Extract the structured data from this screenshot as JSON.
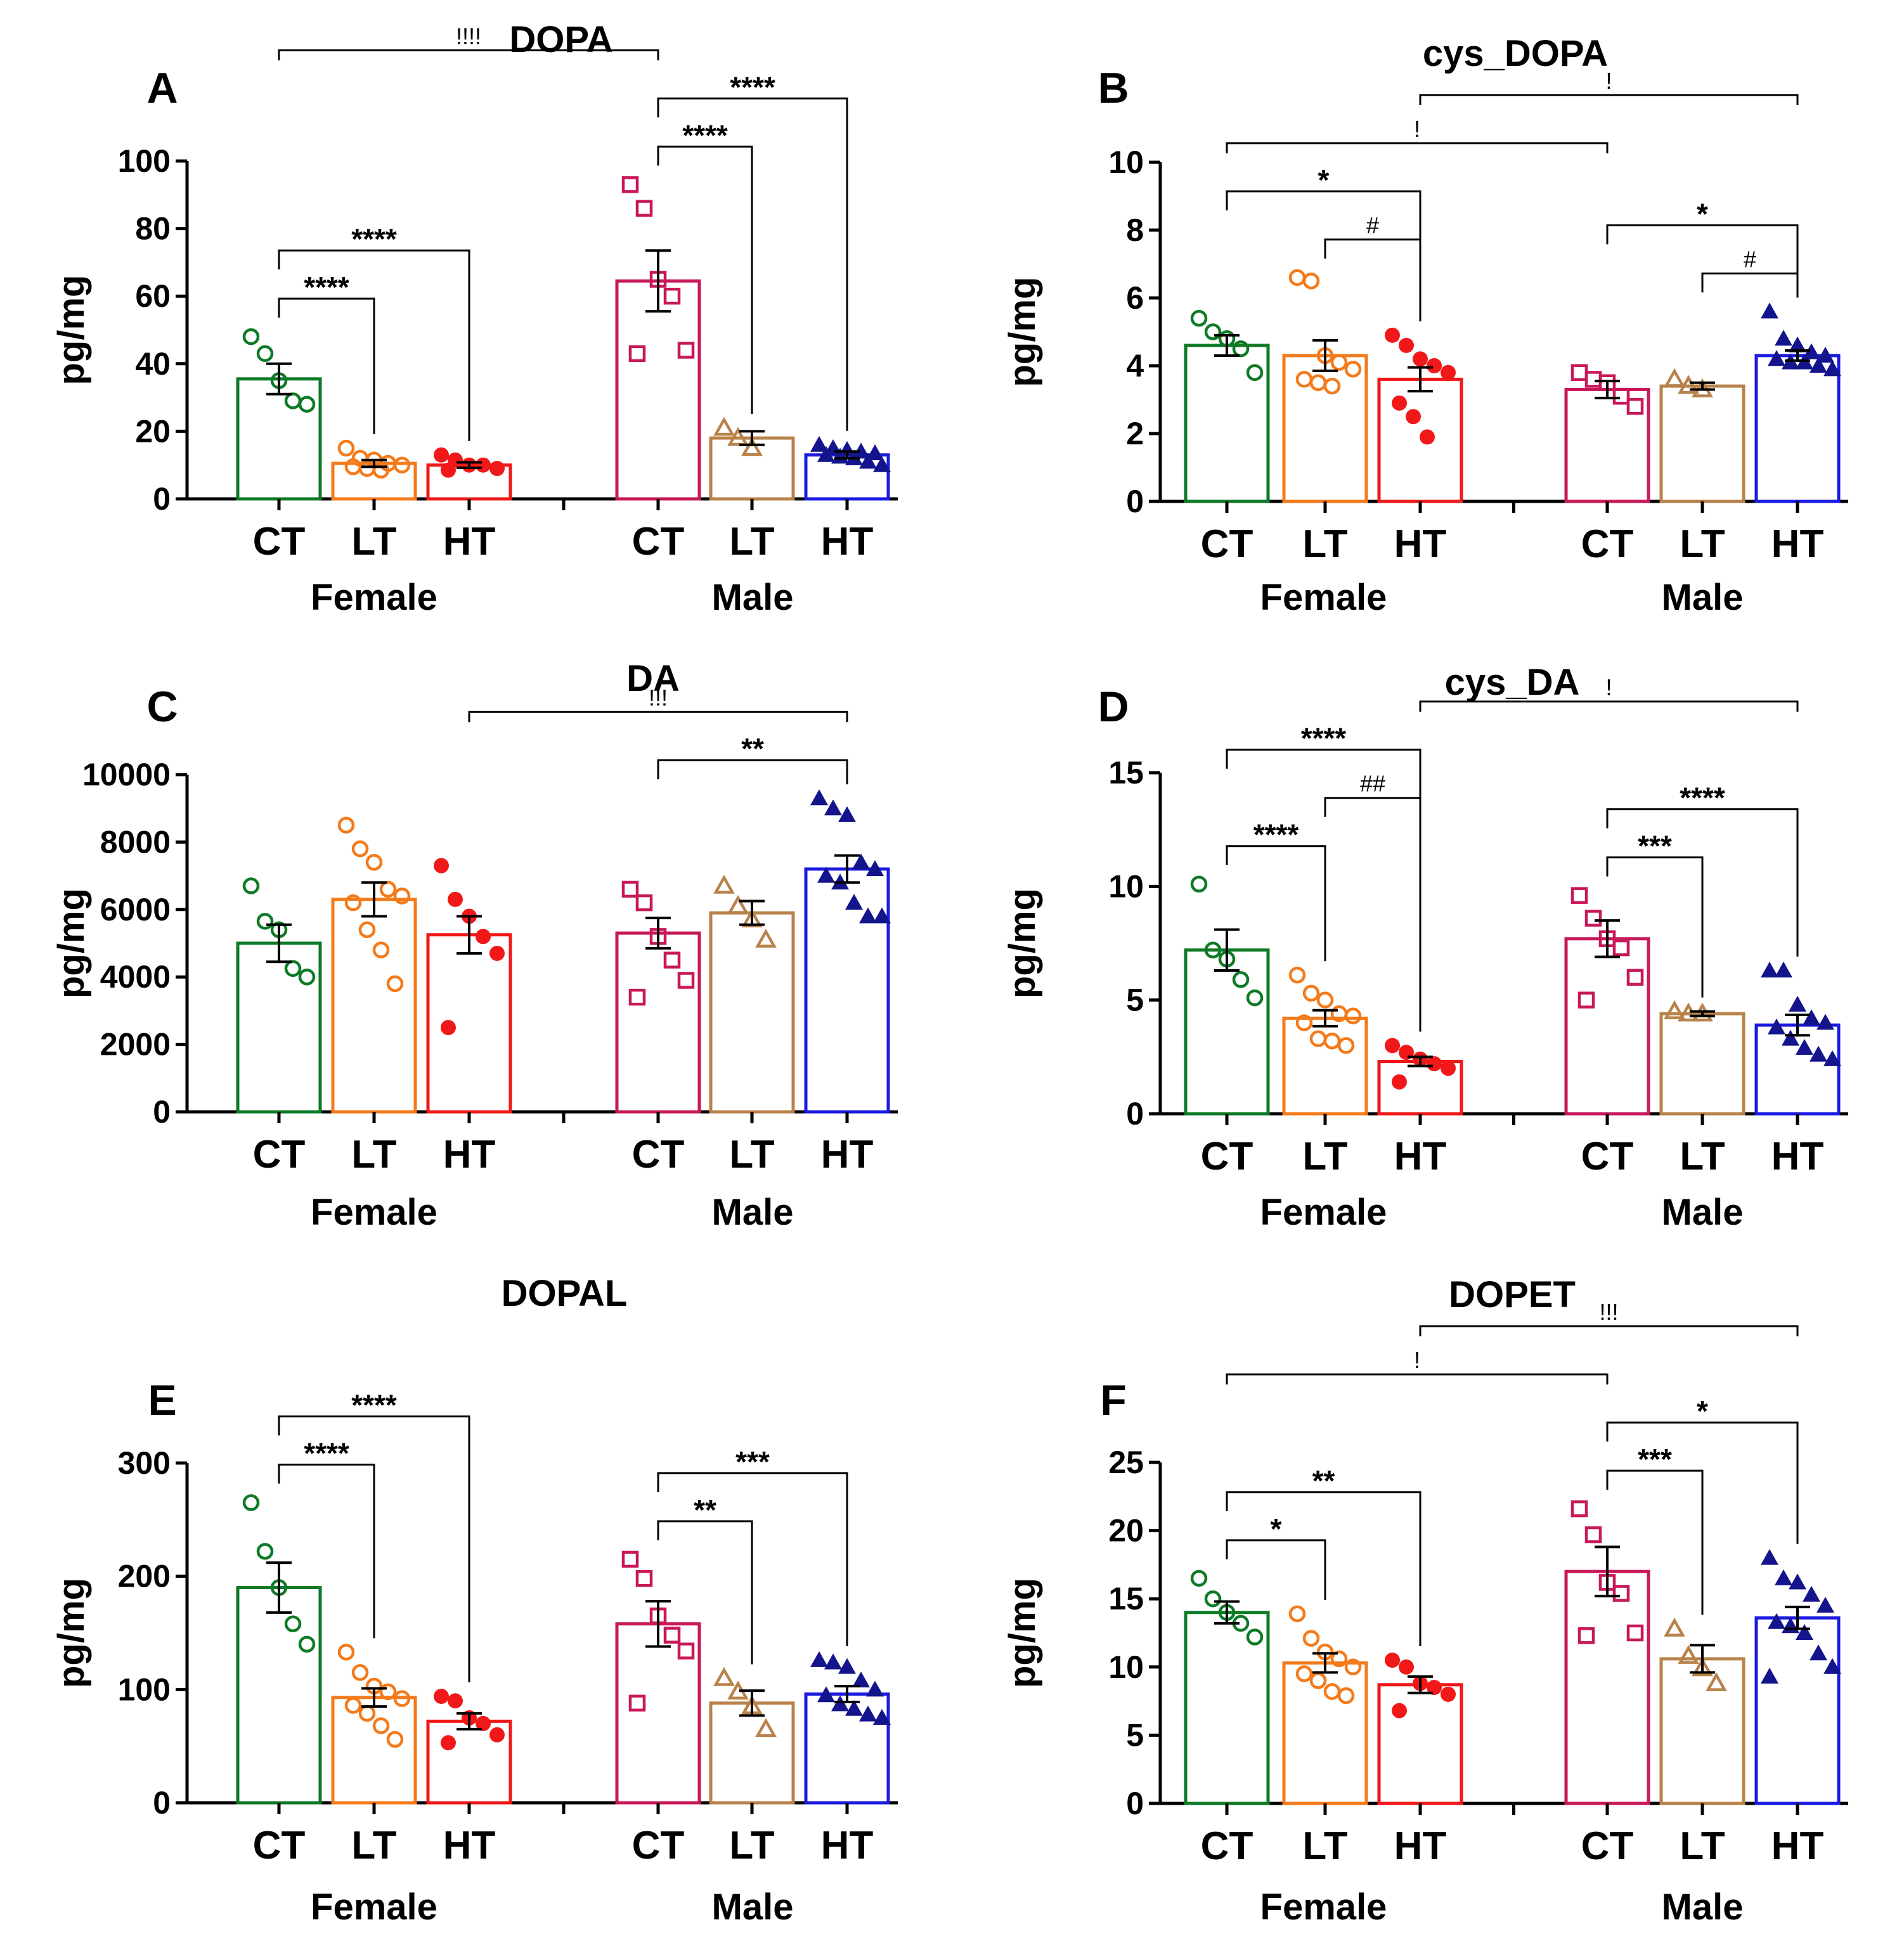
{
  "figure": {
    "colors": {
      "F_CT": "#0e7a26",
      "F_LT": "#f47a1a",
      "F_HT": "#f01818",
      "M_CT": "#c8185a",
      "M_LT": "#b8824a",
      "M_HT": "#1a1ae0",
      "M_HT_marker": "#14148c",
      "axis": "#000000"
    },
    "groups": [
      "Female",
      "Male"
    ],
    "conditions": [
      "CT",
      "LT",
      "HT"
    ]
  },
  "chart_data": [
    {
      "panel": "A",
      "type": "bar",
      "title": "DOPA",
      "ylabel": "pg/mg",
      "ylim": [
        0,
        100
      ],
      "yticks": [
        "0",
        "20",
        "40",
        "60",
        "80",
        "100"
      ],
      "categories": [
        "CT",
        "LT",
        "HT",
        "CT",
        "LT",
        "HT"
      ],
      "group_labels": [
        "Female",
        "Male"
      ],
      "values": [
        35.5,
        10.5,
        10,
        64.5,
        18,
        13
      ],
      "sem": [
        4.5,
        1,
        0.8,
        9,
        2,
        1
      ],
      "points": [
        [
          48,
          43,
          35,
          29,
          28
        ],
        [
          15,
          12,
          11.5,
          10.5,
          10,
          9.5,
          9,
          8.5
        ],
        [
          13,
          11.5,
          10,
          10,
          9,
          8.5
        ],
        [
          93,
          86,
          65,
          60,
          44,
          43
        ],
        [
          21,
          18,
          15
        ],
        [
          16,
          15,
          14.5,
          14,
          13.5,
          13,
          12.5,
          12,
          11,
          10
        ]
      ],
      "comparisons": [
        {
          "from": 0,
          "to": 1,
          "label": "****"
        },
        {
          "from": 0,
          "to": 2,
          "label": "****"
        },
        {
          "from": 3,
          "to": 4,
          "label": "****"
        },
        {
          "from": 3,
          "to": 5,
          "label": "****"
        },
        {
          "from": 0,
          "to": 3,
          "label": "!!!!"
        }
      ]
    },
    {
      "panel": "B",
      "type": "bar",
      "title": "cys_DOPA",
      "ylabel": "pg/mg",
      "ylim": [
        0,
        10
      ],
      "yticks": [
        "0",
        "2",
        "4",
        "6",
        "8",
        "10"
      ],
      "categories": [
        "CT",
        "LT",
        "HT",
        "CT",
        "LT",
        "HT"
      ],
      "group_labels": [
        "Female",
        "Male"
      ],
      "values": [
        4.6,
        4.3,
        3.6,
        3.3,
        3.4,
        4.3
      ],
      "sem": [
        0.3,
        0.45,
        0.35,
        0.25,
        0.1,
        0.15
      ],
      "points": [
        [
          5.4,
          5,
          4.8,
          4.5,
          3.8
        ],
        [
          6.6,
          6.5,
          4.3,
          4.1,
          3.9,
          3.6,
          3.5,
          3.4
        ],
        [
          4.9,
          4.6,
          4.2,
          4,
          3.8,
          2.9,
          2.5,
          1.9
        ],
        [
          3.8,
          3.6,
          3.5,
          3.1,
          2.8
        ],
        [
          3.6,
          3.4,
          3.3
        ],
        [
          5.6,
          4.8,
          4.6,
          4.4,
          4.3,
          4.2,
          4.1,
          4.1,
          4,
          3.9
        ]
      ],
      "comparisons": [
        {
          "from": 0,
          "to": 2,
          "label": "*"
        },
        {
          "from": 1,
          "to": 2,
          "label": "#"
        },
        {
          "from": 3,
          "to": 5,
          "label": "*"
        },
        {
          "from": 4,
          "to": 5,
          "label": "#"
        },
        {
          "from": 0,
          "to": 3,
          "label": "!"
        },
        {
          "from": 2,
          "to": 5,
          "label": "!"
        }
      ]
    },
    {
      "panel": "C",
      "type": "bar",
      "title": "DA",
      "ylabel": "pg/mg",
      "ylim": [
        0,
        10000
      ],
      "yticks": [
        "0",
        "2000",
        "4000",
        "6000",
        "8000",
        "10000"
      ],
      "categories": [
        "CT",
        "LT",
        "HT",
        "CT",
        "LT",
        "HT"
      ],
      "group_labels": [
        "Female",
        "Male"
      ],
      "values": [
        5000,
        6300,
        5250,
        5300,
        5900,
        7200
      ],
      "sem": [
        550,
        500,
        550,
        450,
        350,
        400
      ],
      "points": [
        [
          6700,
          5650,
          5400,
          4250,
          4000
        ],
        [
          8500,
          7800,
          7400,
          6600,
          6400,
          6200,
          5400,
          4800,
          3800
        ],
        [
          7300,
          6300,
          5800,
          5200,
          4700,
          2500
        ],
        [
          6600,
          6200,
          5200,
          4500,
          3900,
          3400
        ],
        [
          6700,
          6100,
          5700,
          5100
        ],
        [
          9300,
          9000,
          8800,
          7400,
          7200,
          7000,
          6800,
          6200,
          5800,
          5800
        ]
      ],
      "comparisons": [
        {
          "from": 3,
          "to": 5,
          "label": "**"
        },
        {
          "from": 2,
          "to": 5,
          "label": "!!!"
        }
      ]
    },
    {
      "panel": "D",
      "type": "bar",
      "title": "cys_DA",
      "ylabel": "pg/mg",
      "ylim": [
        0,
        15
      ],
      "yticks": [
        "0",
        "5",
        "10",
        "15"
      ],
      "categories": [
        "CT",
        "LT",
        "HT",
        "CT",
        "LT",
        "HT"
      ],
      "group_labels": [
        "Female",
        "Male"
      ],
      "values": [
        7.2,
        4.2,
        2.3,
        7.7,
        4.4,
        3.9
      ],
      "sem": [
        0.9,
        0.35,
        0.2,
        0.8,
        0.1,
        0.45
      ],
      "points": [
        [
          10.1,
          7.2,
          6.8,
          5.9,
          5.1
        ],
        [
          6.1,
          5.3,
          5,
          4.4,
          4.3,
          4,
          3.3,
          3.2,
          3
        ],
        [
          3,
          2.7,
          2.4,
          2.2,
          2,
          1.4
        ],
        [
          9.6,
          8.6,
          7.7,
          7.3,
          6,
          5
        ],
        [
          4.5,
          4.4,
          4.4
        ],
        [
          6.3,
          6.3,
          4.8,
          4.2,
          4,
          3.8,
          3.3,
          2.9,
          2.6,
          2.4
        ]
      ],
      "comparisons": [
        {
          "from": 0,
          "to": 1,
          "label": "****"
        },
        {
          "from": 0,
          "to": 2,
          "label": "****"
        },
        {
          "from": 1,
          "to": 2,
          "label": "##"
        },
        {
          "from": 3,
          "to": 4,
          "label": "***"
        },
        {
          "from": 3,
          "to": 5,
          "label": "****"
        },
        {
          "from": 2,
          "to": 5,
          "label": "!"
        }
      ]
    },
    {
      "panel": "E",
      "type": "bar",
      "title": "DOPAL",
      "ylabel": "pg/mg",
      "ylim": [
        0,
        300
      ],
      "yticks": [
        "0",
        "100",
        "200",
        "300"
      ],
      "categories": [
        "CT",
        "LT",
        "HT",
        "CT",
        "LT",
        "HT"
      ],
      "group_labels": [
        "Female",
        "Male"
      ],
      "values": [
        190,
        93,
        72,
        158,
        88,
        96
      ],
      "sem": [
        22,
        8,
        7,
        20,
        11,
        7
      ],
      "points": [
        [
          265,
          222,
          190,
          158,
          140
        ],
        [
          133,
          115,
          103,
          98,
          92,
          86,
          79,
          68,
          56
        ],
        [
          94,
          90,
          75,
          70,
          60,
          53
        ],
        [
          215,
          198,
          165,
          148,
          134,
          88
        ],
        [
          110,
          98,
          85,
          65
        ],
        [
          126,
          124,
          120,
          108,
          100,
          95,
          87,
          83,
          78,
          75
        ]
      ],
      "comparisons": [
        {
          "from": 0,
          "to": 1,
          "label": "****"
        },
        {
          "from": 0,
          "to": 2,
          "label": "****"
        },
        {
          "from": 3,
          "to": 4,
          "label": "**"
        },
        {
          "from": 3,
          "to": 5,
          "label": "***"
        }
      ]
    },
    {
      "panel": "F",
      "type": "bar",
      "title": "DOPET",
      "ylabel": "pg/mg",
      "ylim": [
        0,
        25
      ],
      "yticks": [
        "0",
        "5",
        "10",
        "15",
        "20",
        "25"
      ],
      "categories": [
        "CT",
        "LT",
        "HT",
        "CT",
        "LT",
        "HT"
      ],
      "group_labels": [
        "Female",
        "Male"
      ],
      "values": [
        14,
        10.3,
        8.7,
        17,
        10.6,
        13.6
      ],
      "sem": [
        0.8,
        0.7,
        0.6,
        1.8,
        1,
        0.8
      ],
      "points": [
        [
          16.5,
          15,
          14,
          13.2,
          12.2
        ],
        [
          13.9,
          12.1,
          11.1,
          10.6,
          10,
          9.5,
          9,
          8.2,
          7.9
        ],
        [
          10.5,
          10,
          8.8,
          8.5,
          8,
          6.8
        ],
        [
          21.6,
          19.7,
          16.2,
          15.4,
          12.5,
          12.3
        ],
        [
          12.8,
          10.8,
          9.9,
          8.8
        ],
        [
          18,
          16.5,
          16.2,
          15.3,
          14.5,
          13.3,
          13,
          12.5,
          11,
          10,
          9.3
        ]
      ],
      "comparisons": [
        {
          "from": 0,
          "to": 1,
          "label": "*"
        },
        {
          "from": 0,
          "to": 2,
          "label": "**"
        },
        {
          "from": 3,
          "to": 4,
          "label": "***"
        },
        {
          "from": 3,
          "to": 5,
          "label": "*"
        },
        {
          "from": 0,
          "to": 3,
          "label": "!"
        },
        {
          "from": 2,
          "to": 5,
          "label": "!!!"
        }
      ]
    }
  ]
}
